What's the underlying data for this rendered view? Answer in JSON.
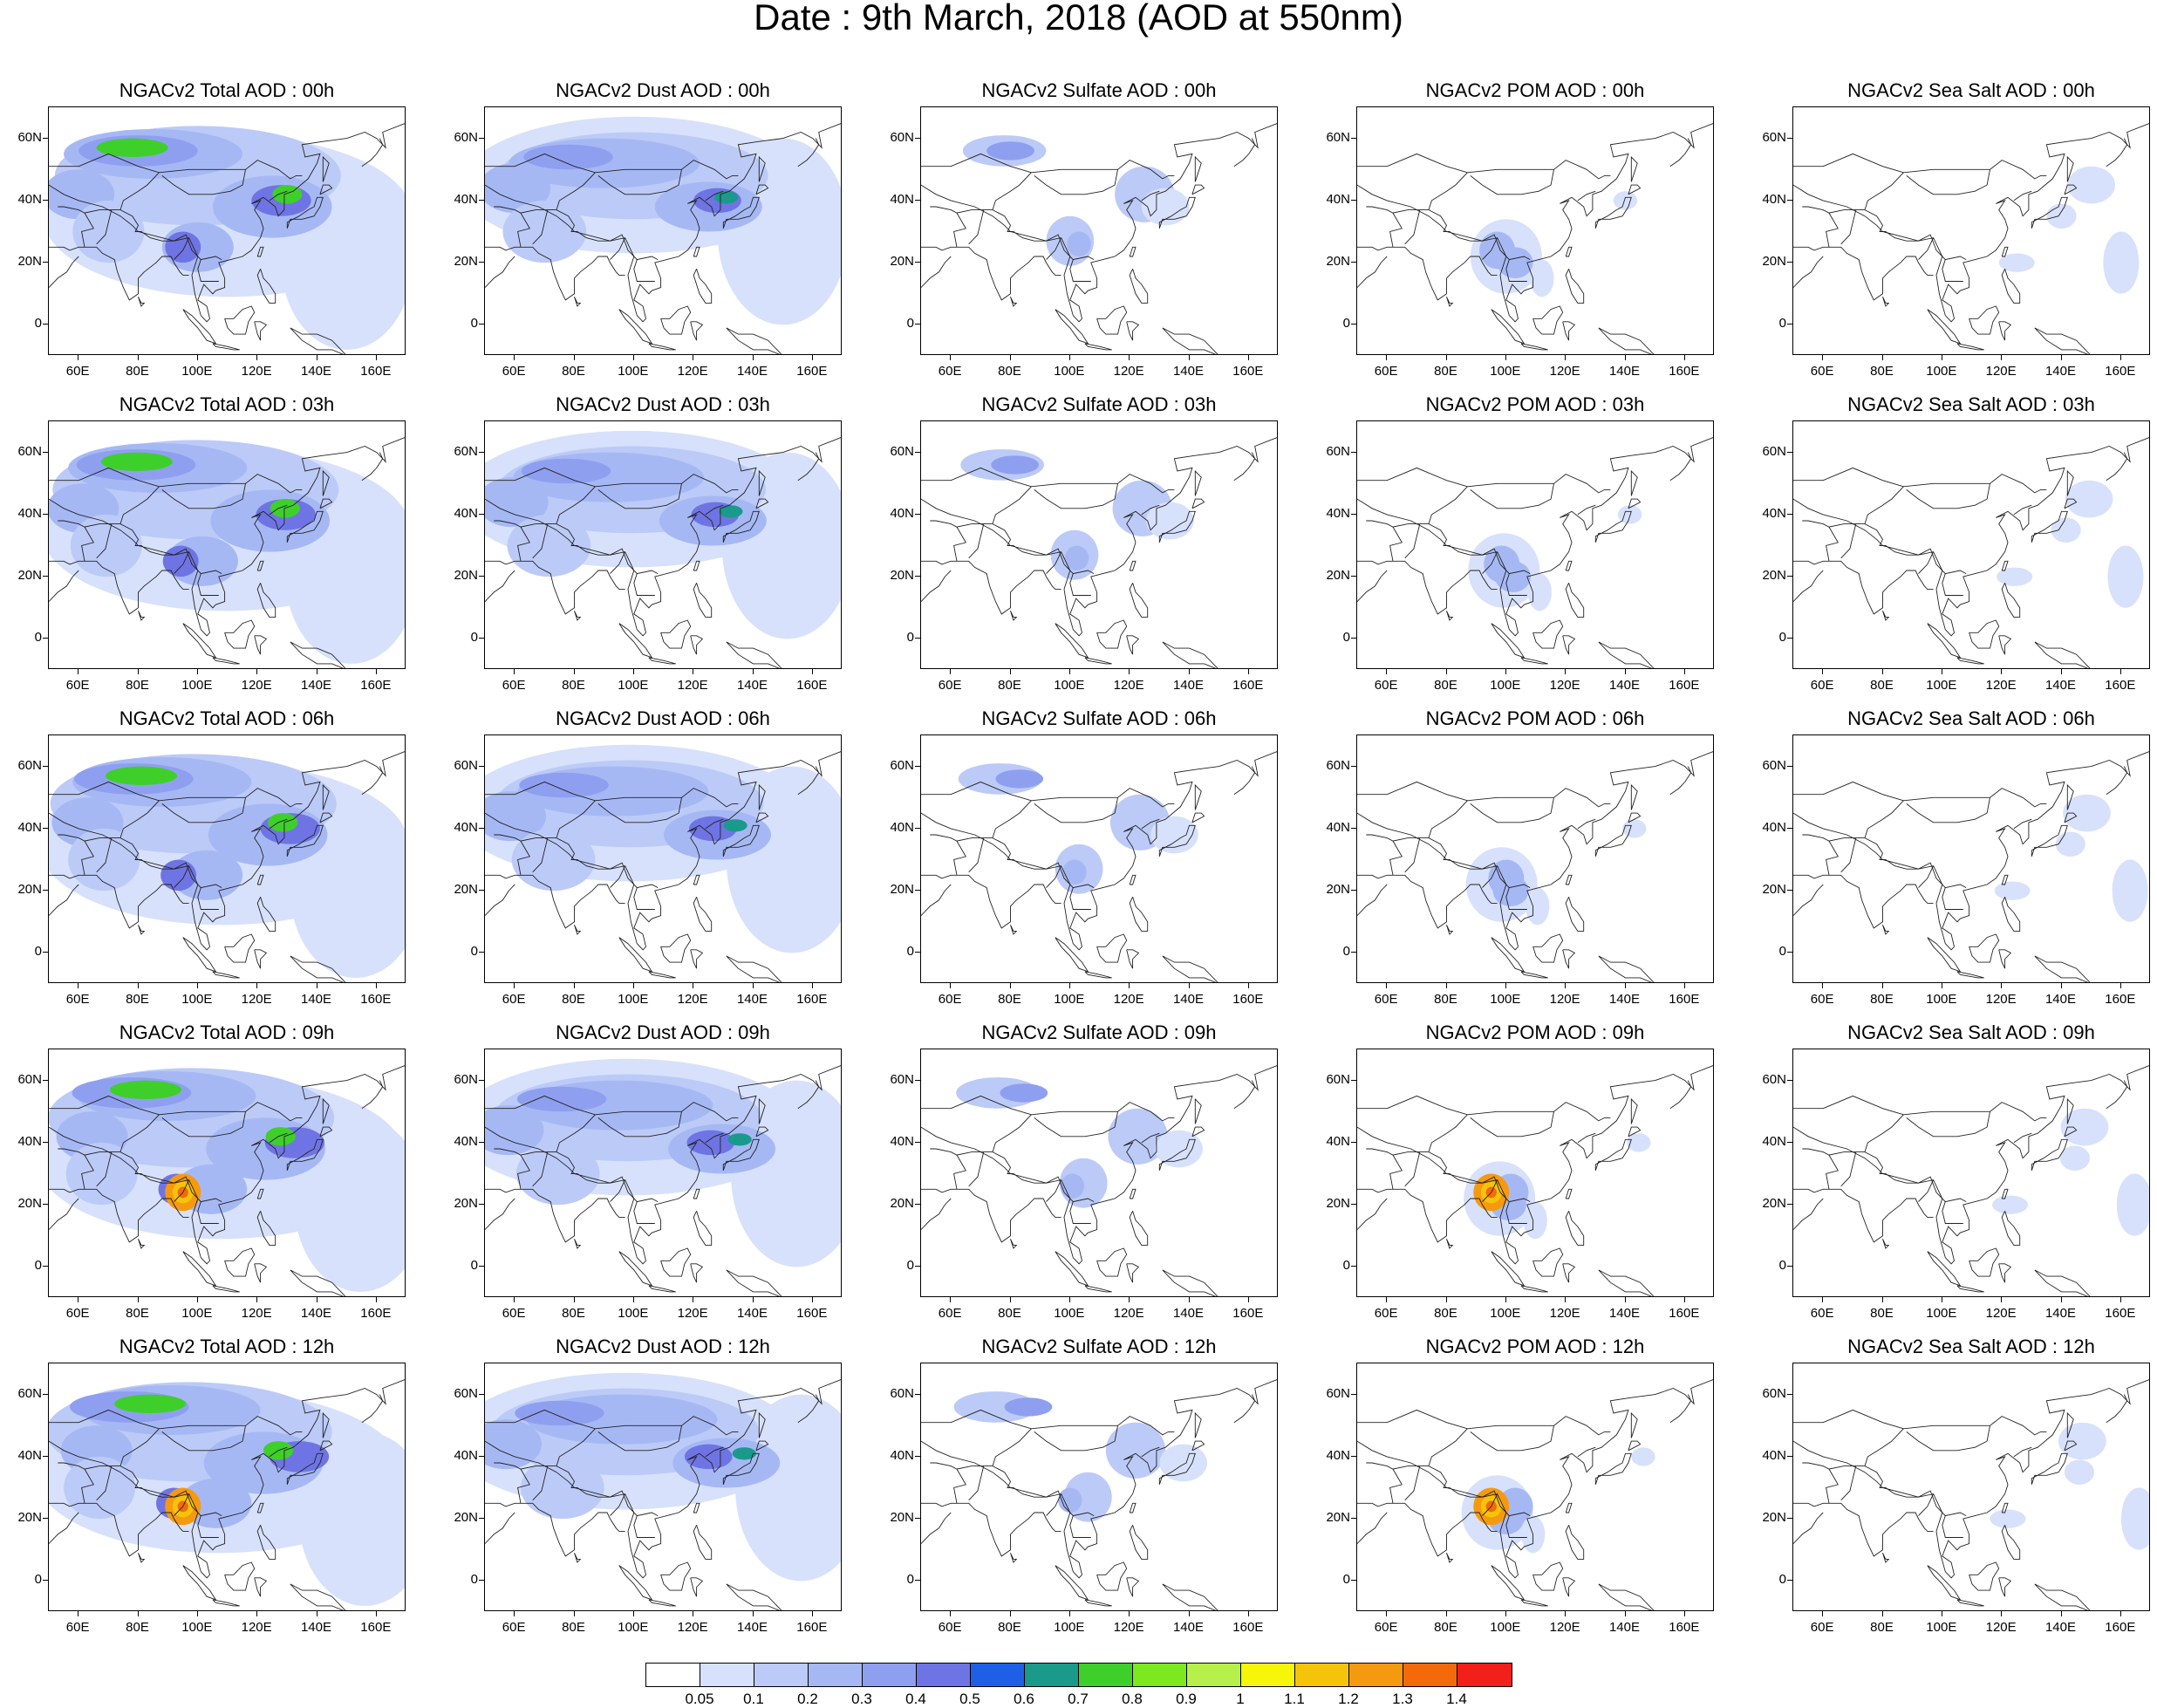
{
  "title": "Date : 9th March, 2018 (AOD at 550nm)",
  "lat_ticks": [
    "60N",
    "40N",
    "20N",
    "0"
  ],
  "lon_ticks": [
    "60E",
    "80E",
    "100E",
    "120E",
    "140E",
    "160E"
  ],
  "panel_titles": [
    [
      "NGACv2 Total AOD : 00h",
      "NGACv2 Dust AOD : 00h",
      "NGACv2 Sulfate AOD : 00h",
      "NGACv2 POM AOD : 00h",
      "NGACv2 Sea Salt AOD : 00h"
    ],
    [
      "NGACv2 Total AOD : 03h",
      "NGACv2 Dust AOD : 03h",
      "NGACv2 Sulfate AOD : 03h",
      "NGACv2 POM AOD : 03h",
      "NGACv2 Sea Salt AOD : 03h"
    ],
    [
      "NGACv2 Total AOD : 06h",
      "NGACv2 Dust AOD : 06h",
      "NGACv2 Sulfate AOD : 06h",
      "NGACv2 POM AOD : 06h",
      "NGACv2 Sea Salt AOD : 06h"
    ],
    [
      "NGACv2 Total AOD : 09h",
      "NGACv2 Dust AOD : 09h",
      "NGACv2 Sulfate AOD : 09h",
      "NGACv2 POM AOD : 09h",
      "NGACv2 Sea Salt  AOD : 09h"
    ],
    [
      "NGACv2 Total AOD  : 12h",
      "NGACv2 Dust AOD : 12h",
      "NGACv2 Sulfate AOD : 12h",
      "NGACv2 POM  AOD : 12h",
      "NGACv2 Sea Salt  AOD : 12h"
    ]
  ],
  "colorbar": {
    "labels": [
      "0.05",
      "0.1",
      "0.2",
      "0.3",
      "0.4",
      "0.5",
      "0.6",
      "0.7",
      "0.8",
      "0.9",
      "1",
      "1.1",
      "1.2",
      "1.3",
      "1.4"
    ],
    "colors": [
      "#ffffff",
      "#d7e1fb",
      "#bccaf7",
      "#a6b8f4",
      "#8f9ff0",
      "#6f74e4",
      "#1f5fe8",
      "#1a9a8a",
      "#3fcf2a",
      "#7ee81e",
      "#b7f04a",
      "#f6f50a",
      "#f5c40a",
      "#f59a10",
      "#f26a0c",
      "#f2201a"
    ]
  }
}
